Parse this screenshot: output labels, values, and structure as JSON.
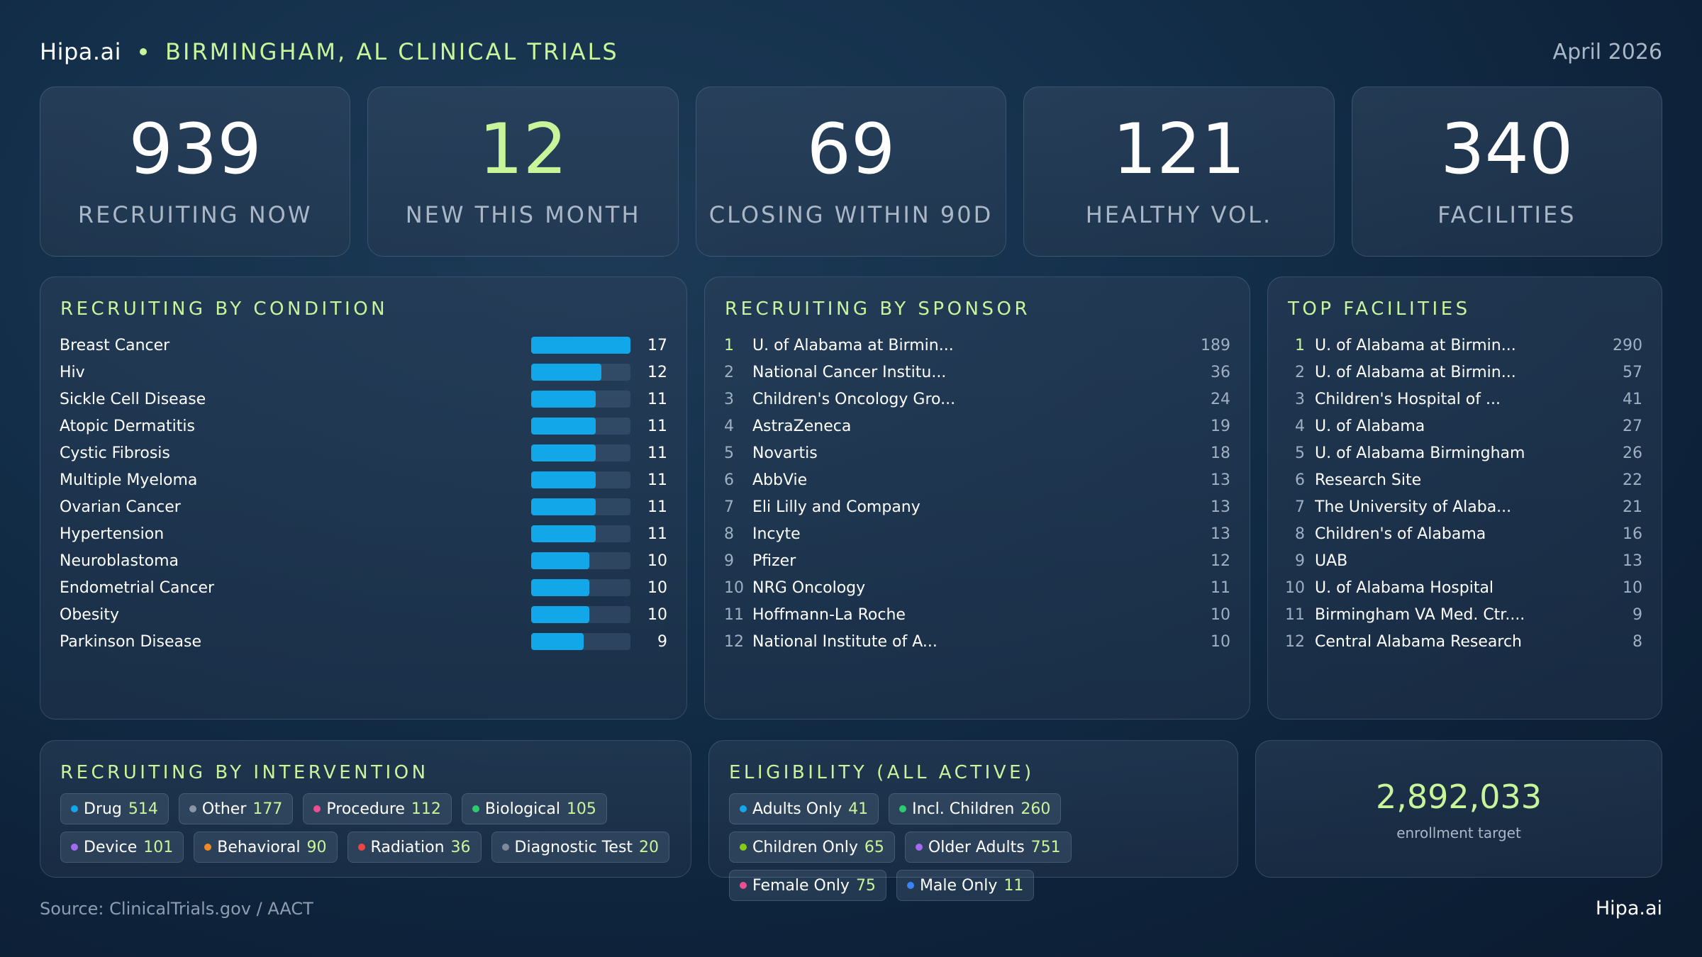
{
  "header": {
    "brand": "Hipa.ai",
    "title": "BIRMINGHAM, AL CLINICAL TRIALS",
    "date": "April 2026"
  },
  "kpis": [
    {
      "value": "939",
      "label": "RECRUITING NOW",
      "accent": false
    },
    {
      "value": "12",
      "label": "NEW THIS MONTH",
      "accent": true
    },
    {
      "value": "69",
      "label": "CLOSING WITHIN 90D",
      "accent": false
    },
    {
      "value": "121",
      "label": "HEALTHY VOL.",
      "accent": false
    },
    {
      "value": "340",
      "label": "FACILITIES",
      "accent": false
    }
  ],
  "conditions": {
    "title": "RECRUITING BY CONDITION",
    "bar_color": "#12a7e8",
    "max": 17,
    "items": [
      {
        "name": "Breast Cancer",
        "value": 17
      },
      {
        "name": "Hiv",
        "value": 12
      },
      {
        "name": "Sickle Cell Disease",
        "value": 11
      },
      {
        "name": "Atopic Dermatitis",
        "value": 11
      },
      {
        "name": "Cystic Fibrosis",
        "value": 11
      },
      {
        "name": "Multiple Myeloma",
        "value": 11
      },
      {
        "name": "Ovarian Cancer",
        "value": 11
      },
      {
        "name": "Hypertension",
        "value": 11
      },
      {
        "name": "Neuroblastoma",
        "value": 10
      },
      {
        "name": "Endometrial Cancer",
        "value": 10
      },
      {
        "name": "Obesity",
        "value": 10
      },
      {
        "name": "Parkinson Disease",
        "value": 9
      }
    ]
  },
  "sponsors": {
    "title": "RECRUITING BY SPONSOR",
    "items": [
      {
        "rank": "1",
        "name": "U. of Alabama at Birmin...",
        "value": "189"
      },
      {
        "rank": "2",
        "name": "National Cancer Institu...",
        "value": "36"
      },
      {
        "rank": "3",
        "name": "Children's Oncology Gro...",
        "value": "24"
      },
      {
        "rank": "4",
        "name": "AstraZeneca",
        "value": "19"
      },
      {
        "rank": "5",
        "name": "Novartis",
        "value": "18"
      },
      {
        "rank": "6",
        "name": "AbbVie",
        "value": "13"
      },
      {
        "rank": "7",
        "name": "Eli Lilly and Company",
        "value": "13"
      },
      {
        "rank": "8",
        "name": "Incyte",
        "value": "13"
      },
      {
        "rank": "9",
        "name": "Pfizer",
        "value": "12"
      },
      {
        "rank": "10",
        "name": "NRG Oncology",
        "value": "11"
      },
      {
        "rank": "11",
        "name": "Hoffmann-La Roche",
        "value": "10"
      },
      {
        "rank": "12",
        "name": "National Institute of A...",
        "value": "10"
      }
    ]
  },
  "facilities": {
    "title": "TOP FACILITIES",
    "items": [
      {
        "rank": "1",
        "name": "U. of Alabama at Birmin...",
        "value": "290"
      },
      {
        "rank": "2",
        "name": "U. of Alabama at Birmin...",
        "value": "57"
      },
      {
        "rank": "3",
        "name": "Children's Hospital of ...",
        "value": "41"
      },
      {
        "rank": "4",
        "name": "U. of Alabama",
        "value": "27"
      },
      {
        "rank": "5",
        "name": "U. of Alabama Birmingham",
        "value": "26"
      },
      {
        "rank": "6",
        "name": "Research Site",
        "value": "22"
      },
      {
        "rank": "7",
        "name": "The University of Alaba...",
        "value": "21"
      },
      {
        "rank": "8",
        "name": "Children's of Alabama",
        "value": "16"
      },
      {
        "rank": "9",
        "name": "UAB",
        "value": "13"
      },
      {
        "rank": "10",
        "name": "U. of Alabama Hospital",
        "value": "10"
      },
      {
        "rank": "11",
        "name": "Birmingham VA Med. Ctr....",
        "value": "9"
      },
      {
        "rank": "12",
        "name": "Central Alabama Research",
        "value": "8"
      }
    ]
  },
  "interventions": {
    "title": "RECRUITING BY INTERVENTION",
    "items": [
      {
        "label": "Drug",
        "count": "514",
        "color": "#12a7e8"
      },
      {
        "label": "Other",
        "count": "177",
        "color": "#8a96a6"
      },
      {
        "label": "Procedure",
        "count": "112",
        "color": "#ec4f8f"
      },
      {
        "label": "Biological",
        "count": "105",
        "color": "#2ecc71"
      },
      {
        "label": "Device",
        "count": "101",
        "color": "#a26bf0"
      },
      {
        "label": "Behavioral",
        "count": "90",
        "color": "#f08a24"
      },
      {
        "label": "Radiation",
        "count": "36",
        "color": "#ef4444"
      },
      {
        "label": "Diagnostic Test",
        "count": "20",
        "color": "#7d8a99"
      }
    ]
  },
  "eligibility": {
    "title": "ELIGIBILITY (ALL ACTIVE)",
    "items": [
      {
        "label": "Adults Only",
        "count": "41",
        "color": "#12a7e8"
      },
      {
        "label": "Incl. Children",
        "count": "260",
        "color": "#2ecc71"
      },
      {
        "label": "Children Only",
        "count": "65",
        "color": "#84cc16"
      },
      {
        "label": "Older Adults",
        "count": "751",
        "color": "#a26bf0"
      },
      {
        "label": "Female Only",
        "count": "75",
        "color": "#ec4f8f"
      },
      {
        "label": "Male Only",
        "count": "11",
        "color": "#3b82f6"
      }
    ]
  },
  "enrollment": {
    "value": "2,892,033",
    "label": "enrollment target"
  },
  "footer": {
    "source": "Source: ClinicalTrials.gov / AACT",
    "brand": "Hipa.ai"
  }
}
